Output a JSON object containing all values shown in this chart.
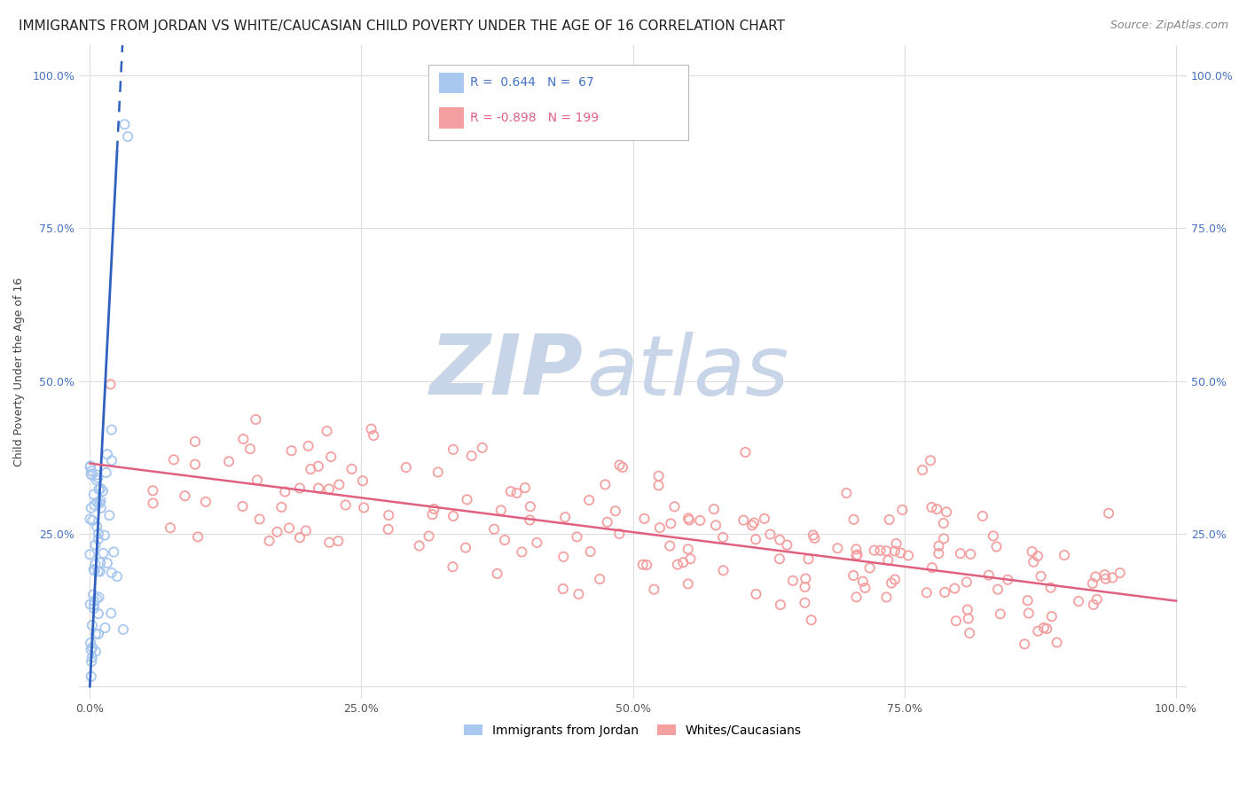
{
  "title": "IMMIGRANTS FROM JORDAN VS WHITE/CAUCASIAN CHILD POVERTY UNDER THE AGE OF 16 CORRELATION CHART",
  "source": "Source: ZipAtlas.com",
  "ylabel": "Child Poverty Under the Age of 16",
  "blue_R": 0.644,
  "blue_N": 67,
  "pink_R": -0.898,
  "pink_N": 199,
  "blue_color": "#A8C8F0",
  "pink_color": "#F4A0A0",
  "blue_line_color": "#3060C0",
  "pink_line_color": "#E06080",
  "background_color": "#FFFFFF",
  "watermark_zip": "ZIP",
  "watermark_atlas": "atlas",
  "watermark_color": "#C8D4E8",
  "legend_labels": [
    "Immigrants from Jordan",
    "Whites/Caucasians"
  ],
  "xlim": [
    -0.01,
    1.01
  ],
  "ylim": [
    -0.02,
    1.05
  ],
  "x_ticks": [
    0.0,
    0.25,
    0.5,
    0.75,
    1.0
  ],
  "x_tick_labels": [
    "0.0%",
    "25.0%",
    "50.0%",
    "75.0%",
    "100.0%"
  ],
  "y_ticks": [
    0.0,
    0.25,
    0.5,
    0.75,
    1.0
  ],
  "y_tick_labels": [
    "",
    "25.0%",
    "50.0%",
    "75.0%",
    "100.0%"
  ],
  "title_fontsize": 11,
  "source_fontsize": 9,
  "axis_label_fontsize": 9,
  "tick_fontsize": 9,
  "legend_R_blue_text": "R =  0.644   N =  67",
  "legend_R_pink_text": "R = -0.898   N = 199"
}
